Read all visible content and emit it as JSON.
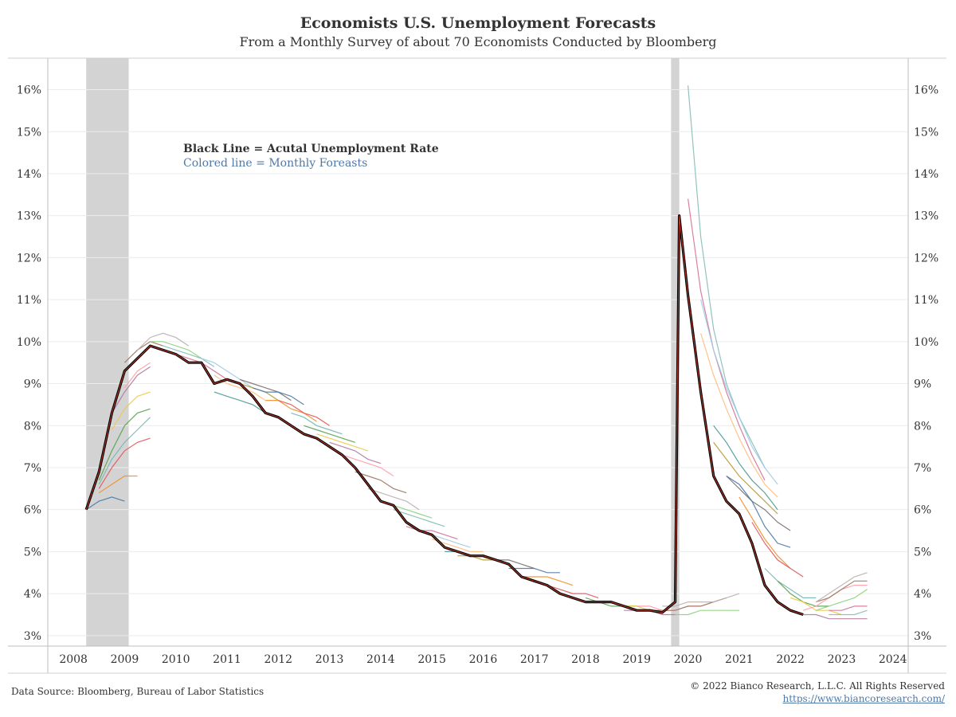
{
  "title": "Economists U.S. Unemployment Forecasts",
  "subtitle": "From a Monthly Survey of about 70 Economists Conducted by Bloomberg",
  "legend": {
    "black_line": "Black Line = Acutal Unemployment Rate",
    "colored_line": "Colored line = Monthly Foreasts"
  },
  "footer": {
    "source": "Data Source: Bloomberg, Bureau of Labor Statistics",
    "copyright": "© 2022 Bianco Research, L.L.C. All Rights Reserved",
    "url": "https://www.biancoresearch.com/"
  },
  "colors": {
    "actual_line": "#000000",
    "actual_inner": "#c0392b",
    "recession_shade": "#d3d3d3",
    "forecast_palette": [
      "#4e79a7",
      "#f28e2b",
      "#e15759",
      "#76b7b2",
      "#59a14f",
      "#edc948",
      "#b07aa1",
      "#ff9da7",
      "#9c755f",
      "#bab0ac",
      "#8cd17d",
      "#86bcb6",
      "#d37295",
      "#a0cbe8",
      "#ffbe7d",
      "#499894",
      "#b6992d",
      "#79706e"
    ]
  },
  "chart_data": {
    "type": "line",
    "title": "Economists U.S. Unemployment Forecasts",
    "xlabel": "",
    "ylabel": "",
    "x_ticks": [
      "2008",
      "2009",
      "2010",
      "2011",
      "2012",
      "2013",
      "2014",
      "2015",
      "2016",
      "2017",
      "2018",
      "2019",
      "2020",
      "2021",
      "2022",
      "2023",
      "2024"
    ],
    "y_ticks": [
      "3%",
      "4%",
      "5%",
      "6%",
      "7%",
      "8%",
      "9%",
      "10%",
      "11%",
      "12%",
      "13%",
      "14%",
      "15%",
      "16%"
    ],
    "xlim": [
      2008.0,
      2024.8
    ],
    "ylim": [
      2.75,
      16.75
    ],
    "grid": true,
    "recessions": [
      [
        2008.75,
        2009.58
      ],
      [
        2020.17,
        2020.33
      ]
    ],
    "actual": {
      "x": [
        2008.75,
        2009.0,
        2009.25,
        2009.5,
        2009.75,
        2010.0,
        2010.25,
        2010.5,
        2010.75,
        2011.0,
        2011.25,
        2011.5,
        2011.75,
        2012.0,
        2012.25,
        2012.5,
        2012.75,
        2013.0,
        2013.25,
        2013.5,
        2013.75,
        2014.0,
        2014.25,
        2014.5,
        2014.75,
        2015.0,
        2015.25,
        2015.5,
        2015.75,
        2016.0,
        2016.25,
        2016.5,
        2016.75,
        2017.0,
        2017.25,
        2017.5,
        2017.75,
        2018.0,
        2018.25,
        2018.5,
        2018.75,
        2019.0,
        2019.25,
        2019.5,
        2019.75,
        2020.0,
        2020.25,
        2020.33,
        2020.5,
        2020.75,
        2021.0,
        2021.25,
        2021.5,
        2021.75,
        2022.0,
        2022.25,
        2022.5,
        2022.75
      ],
      "y": [
        6.0,
        6.9,
        8.3,
        9.3,
        9.6,
        9.9,
        9.8,
        9.7,
        9.5,
        9.5,
        9.0,
        9.1,
        9.0,
        8.7,
        8.3,
        8.2,
        8.0,
        7.8,
        7.7,
        7.5,
        7.3,
        7.0,
        6.6,
        6.2,
        6.1,
        5.7,
        5.5,
        5.4,
        5.1,
        5.0,
        4.9,
        4.9,
        4.8,
        4.7,
        4.4,
        4.3,
        4.2,
        4.0,
        3.9,
        3.8,
        3.8,
        3.8,
        3.7,
        3.6,
        3.6,
        3.55,
        3.8,
        13.0,
        11.1,
        8.8,
        6.8,
        6.2,
        5.9,
        5.2,
        4.2,
        3.8,
        3.6,
        3.5
      ]
    },
    "forecasts": [
      {
        "x": [
          2008.75,
          2009.0,
          2009.25,
          2009.5
        ],
        "y": [
          6.0,
          6.2,
          6.3,
          6.2
        ]
      },
      {
        "x": [
          2009.0,
          2009.25,
          2009.5,
          2009.75
        ],
        "y": [
          6.4,
          6.6,
          6.8,
          6.8
        ]
      },
      {
        "x": [
          2009.0,
          2009.25,
          2009.5,
          2009.75,
          2010.0
        ],
        "y": [
          6.5,
          7.0,
          7.4,
          7.6,
          7.7
        ]
      },
      {
        "x": [
          2009.0,
          2009.25,
          2009.5,
          2009.75,
          2010.0
        ],
        "y": [
          6.6,
          7.2,
          7.6,
          7.9,
          8.2
        ]
      },
      {
        "x": [
          2009.0,
          2009.25,
          2009.5,
          2009.75,
          2010.0
        ],
        "y": [
          6.7,
          7.4,
          8.0,
          8.3,
          8.4
        ]
      },
      {
        "x": [
          2009.25,
          2009.5,
          2009.75,
          2010.0
        ],
        "y": [
          7.9,
          8.4,
          8.7,
          8.8
        ]
      },
      {
        "x": [
          2009.25,
          2009.5,
          2009.75,
          2010.0
        ],
        "y": [
          8.3,
          8.8,
          9.2,
          9.4
        ]
      },
      {
        "x": [
          2009.5,
          2009.75,
          2010.0
        ],
        "y": [
          8.9,
          9.3,
          9.5
        ]
      },
      {
        "x": [
          2009.5,
          2009.75,
          2010.0,
          2010.25
        ],
        "y": [
          9.5,
          9.8,
          10.0,
          9.9
        ]
      },
      {
        "x": [
          2009.75,
          2010.0,
          2010.25,
          2010.5,
          2010.75
        ],
        "y": [
          9.8,
          10.1,
          10.2,
          10.1,
          9.9
        ]
      },
      {
        "x": [
          2010.0,
          2010.25,
          2010.5,
          2010.75,
          2011.0
        ],
        "y": [
          10.0,
          10.0,
          9.9,
          9.8,
          9.6
        ]
      },
      {
        "x": [
          2010.25,
          2010.5,
          2010.75,
          2011.0,
          2011.25
        ],
        "y": [
          9.9,
          9.8,
          9.7,
          9.6,
          9.4
        ]
      },
      {
        "x": [
          2010.5,
          2010.75,
          2011.0,
          2011.25,
          2011.5
        ],
        "y": [
          9.7,
          9.6,
          9.5,
          9.3,
          9.1
        ]
      },
      {
        "x": [
          2011.0,
          2011.25,
          2011.5,
          2011.75,
          2012.0
        ],
        "y": [
          9.6,
          9.5,
          9.3,
          9.1,
          8.9
        ]
      },
      {
        "x": [
          2011.25,
          2011.5,
          2011.75,
          2012.0,
          2012.25
        ],
        "y": [
          9.2,
          9.0,
          8.9,
          8.8,
          8.6
        ]
      },
      {
        "x": [
          2011.25,
          2011.5,
          2011.75,
          2012.0,
          2012.25
        ],
        "y": [
          8.8,
          8.7,
          8.6,
          8.5,
          8.3
        ]
      },
      {
        "x": [
          2011.5,
          2011.75,
          2012.0,
          2012.25,
          2012.5
        ],
        "y": [
          9.1,
          9.0,
          8.9,
          8.8,
          8.6
        ]
      },
      {
        "x": [
          2011.75,
          2012.0,
          2012.25,
          2012.5,
          2012.75
        ],
        "y": [
          9.1,
          9.0,
          8.9,
          8.8,
          8.6
        ]
      },
      {
        "x": [
          2012.0,
          2012.25,
          2012.5,
          2012.75,
          2013.0
        ],
        "y": [
          8.9,
          8.8,
          8.8,
          8.7,
          8.5
        ]
      },
      {
        "x": [
          2012.25,
          2012.5,
          2012.75,
          2013.0,
          2013.25
        ],
        "y": [
          8.6,
          8.6,
          8.4,
          8.3,
          8.1
        ]
      },
      {
        "x": [
          2012.5,
          2012.75,
          2013.0,
          2013.25,
          2013.5
        ],
        "y": [
          8.6,
          8.5,
          8.3,
          8.2,
          8.0
        ]
      },
      {
        "x": [
          2012.75,
          2013.0,
          2013.25,
          2013.5,
          2013.75
        ],
        "y": [
          8.3,
          8.2,
          8.0,
          7.9,
          7.8
        ]
      },
      {
        "x": [
          2013.0,
          2013.25,
          2013.5,
          2013.75,
          2014.0
        ],
        "y": [
          8.0,
          7.9,
          7.8,
          7.7,
          7.6
        ]
      },
      {
        "x": [
          2013.25,
          2013.5,
          2013.75,
          2014.0,
          2014.25
        ],
        "y": [
          7.8,
          7.7,
          7.6,
          7.5,
          7.4
        ]
      },
      {
        "x": [
          2013.5,
          2013.75,
          2014.0,
          2014.25,
          2014.5
        ],
        "y": [
          7.6,
          7.5,
          7.4,
          7.2,
          7.1
        ]
      },
      {
        "x": [
          2013.75,
          2014.0,
          2014.25,
          2014.5,
          2014.75
        ],
        "y": [
          7.3,
          7.2,
          7.1,
          7.0,
          6.8
        ]
      },
      {
        "x": [
          2014.0,
          2014.25,
          2014.5,
          2014.75,
          2015.0
        ],
        "y": [
          6.9,
          6.8,
          6.7,
          6.5,
          6.4
        ]
      },
      {
        "x": [
          2014.25,
          2014.5,
          2014.75,
          2015.0,
          2015.25
        ],
        "y": [
          6.5,
          6.4,
          6.3,
          6.2,
          6.0
        ]
      },
      {
        "x": [
          2014.5,
          2014.75,
          2015.0,
          2015.25,
          2015.5
        ],
        "y": [
          6.2,
          6.1,
          6.0,
          5.9,
          5.8
        ]
      },
      {
        "x": [
          2014.75,
          2015.0,
          2015.25,
          2015.5,
          2015.75
        ],
        "y": [
          6.0,
          5.9,
          5.8,
          5.7,
          5.6
        ]
      },
      {
        "x": [
          2015.0,
          2015.25,
          2015.5,
          2015.75,
          2016.0
        ],
        "y": [
          5.6,
          5.5,
          5.5,
          5.4,
          5.3
        ]
      },
      {
        "x": [
          2015.25,
          2015.5,
          2015.75,
          2016.0,
          2016.25
        ],
        "y": [
          5.5,
          5.4,
          5.3,
          5.2,
          5.1
        ]
      },
      {
        "x": [
          2015.5,
          2015.75,
          2016.0,
          2016.25,
          2016.5
        ],
        "y": [
          5.3,
          5.2,
          5.1,
          5.0,
          5.0
        ]
      },
      {
        "x": [
          2015.75,
          2016.0,
          2016.25,
          2016.5,
          2016.75
        ],
        "y": [
          5.0,
          5.0,
          4.9,
          4.9,
          4.8
        ]
      },
      {
        "x": [
          2016.0,
          2016.25,
          2016.5,
          2016.75,
          2017.0
        ],
        "y": [
          4.9,
          4.9,
          4.8,
          4.8,
          4.7
        ]
      },
      {
        "x": [
          2016.5,
          2016.75,
          2017.0,
          2017.25,
          2017.5
        ],
        "y": [
          4.9,
          4.8,
          4.8,
          4.7,
          4.6
        ]
      },
      {
        "x": [
          2017.0,
          2017.25,
          2017.5,
          2017.75,
          2018.0
        ],
        "y": [
          4.6,
          4.6,
          4.6,
          4.5,
          4.5
        ]
      },
      {
        "x": [
          2017.25,
          2017.5,
          2017.75,
          2018.0,
          2018.25
        ],
        "y": [
          4.4,
          4.4,
          4.4,
          4.3,
          4.2
        ]
      },
      {
        "x": [
          2017.75,
          2018.0,
          2018.25,
          2018.5,
          2018.75
        ],
        "y": [
          4.2,
          4.1,
          4.0,
          4.0,
          3.9
        ]
      },
      {
        "x": [
          2018.0,
          2018.25,
          2018.5,
          2018.75,
          2019.0
        ],
        "y": [
          4.0,
          3.9,
          3.8,
          3.8,
          3.8
        ]
      },
      {
        "x": [
          2018.5,
          2018.75,
          2019.0,
          2019.25,
          2019.5
        ],
        "y": [
          3.9,
          3.8,
          3.7,
          3.7,
          3.7
        ]
      },
      {
        "x": [
          2019.0,
          2019.25,
          2019.5,
          2019.75,
          2020.0
        ],
        "y": [
          3.8,
          3.7,
          3.7,
          3.6,
          3.6
        ]
      },
      {
        "x": [
          2019.25,
          2019.5,
          2019.75,
          2020.0,
          2020.25
        ],
        "y": [
          3.6,
          3.6,
          3.6,
          3.5,
          3.5
        ]
      },
      {
        "x": [
          2019.5,
          2019.75,
          2020.0,
          2020.25,
          2020.5,
          2020.75,
          2021.0
        ],
        "y": [
          3.7,
          3.7,
          3.6,
          3.6,
          3.7,
          3.7,
          3.8
        ]
      },
      {
        "x": [
          2019.75,
          2020.0,
          2020.25,
          2020.5,
          2020.75,
          2021.0,
          2021.25
        ],
        "y": [
          3.6,
          3.6,
          3.6,
          3.7,
          3.7,
          3.8,
          3.9
        ]
      },
      {
        "x": [
          2020.0,
          2020.25,
          2020.5,
          2020.75,
          2021.0,
          2021.25,
          2021.5
        ],
        "y": [
          3.7,
          3.7,
          3.8,
          3.8,
          3.8,
          3.9,
          4.0
        ]
      },
      {
        "x": [
          2020.25,
          2020.5,
          2020.75,
          2021.0,
          2021.25,
          2021.5
        ],
        "y": [
          3.5,
          3.5,
          3.6,
          3.6,
          3.6,
          3.6
        ]
      },
      {
        "x": [
          2020.5,
          2020.75,
          2021.0,
          2021.25,
          2021.5,
          2021.75,
          2022.0
        ],
        "y": [
          16.1,
          12.5,
          10.3,
          9.0,
          8.2,
          7.6,
          7.0
        ]
      },
      {
        "x": [
          2020.5,
          2020.75,
          2021.0,
          2021.25,
          2021.5,
          2021.75,
          2022.0
        ],
        "y": [
          13.4,
          11.2,
          9.8,
          8.8,
          8.0,
          7.3,
          6.7
        ]
      },
      {
        "x": [
          2020.75,
          2021.0,
          2021.25,
          2021.5,
          2021.75,
          2022.0,
          2022.25
        ],
        "y": [
          11.0,
          9.8,
          8.9,
          8.2,
          7.5,
          7.0,
          6.6
        ]
      },
      {
        "x": [
          2020.75,
          2021.0,
          2021.25,
          2021.5,
          2021.75,
          2022.0,
          2022.25
        ],
        "y": [
          10.2,
          9.2,
          8.4,
          7.7,
          7.1,
          6.6,
          6.3
        ]
      },
      {
        "x": [
          2021.0,
          2021.25,
          2021.5,
          2021.75,
          2022.0,
          2022.25
        ],
        "y": [
          8.0,
          7.6,
          7.1,
          6.7,
          6.4,
          6.0
        ]
      },
      {
        "x": [
          2021.0,
          2021.25,
          2021.5,
          2021.75,
          2022.0,
          2022.25
        ],
        "y": [
          7.6,
          7.2,
          6.8,
          6.5,
          6.2,
          5.9
        ]
      },
      {
        "x": [
          2021.25,
          2021.5,
          2021.75,
          2022.0,
          2022.25,
          2022.5
        ],
        "y": [
          6.8,
          6.5,
          6.2,
          6.0,
          5.7,
          5.5
        ]
      },
      {
        "x": [
          2021.25,
          2021.5,
          2021.75,
          2022.0,
          2022.25,
          2022.5
        ],
        "y": [
          6.8,
          6.6,
          6.2,
          5.6,
          5.2,
          5.1
        ]
      },
      {
        "x": [
          2021.5,
          2021.75,
          2022.0,
          2022.25,
          2022.5
        ],
        "y": [
          6.3,
          5.8,
          5.3,
          4.9,
          4.6
        ]
      },
      {
        "x": [
          2021.75,
          2022.0,
          2022.25,
          2022.5,
          2022.75
        ],
        "y": [
          5.7,
          5.2,
          4.8,
          4.6,
          4.4
        ]
      },
      {
        "x": [
          2022.0,
          2022.25,
          2022.5,
          2022.75,
          2023.0
        ],
        "y": [
          4.6,
          4.3,
          4.1,
          3.9,
          3.9
        ]
      },
      {
        "x": [
          2022.25,
          2022.5,
          2022.75,
          2023.0,
          2023.25
        ],
        "y": [
          4.3,
          4.0,
          3.8,
          3.7,
          3.7
        ]
      },
      {
        "x": [
          2022.5,
          2022.75,
          2023.0,
          2023.25,
          2023.5
        ],
        "y": [
          3.9,
          3.8,
          3.6,
          3.6,
          3.5
        ]
      },
      {
        "x": [
          2022.75,
          2023.0,
          2023.25,
          2023.5,
          2023.75,
          2024.0
        ],
        "y": [
          3.5,
          3.5,
          3.4,
          3.4,
          3.4,
          3.4
        ]
      },
      {
        "x": [
          2022.75,
          2023.0,
          2023.25,
          2023.5,
          2023.75,
          2024.0
        ],
        "y": [
          3.6,
          3.7,
          3.9,
          4.1,
          4.2,
          4.2
        ]
      },
      {
        "x": [
          2023.0,
          2023.25,
          2023.5,
          2023.75,
          2024.0
        ],
        "y": [
          3.8,
          3.9,
          4.1,
          4.3,
          4.3
        ]
      },
      {
        "x": [
          2023.0,
          2023.25,
          2023.5,
          2023.75,
          2024.0
        ],
        "y": [
          3.8,
          4.0,
          4.2,
          4.4,
          4.5
        ]
      },
      {
        "x": [
          2023.0,
          2023.25,
          2023.5,
          2023.75,
          2024.0
        ],
        "y": [
          3.6,
          3.7,
          3.8,
          3.9,
          4.1
        ]
      },
      {
        "x": [
          2023.25,
          2023.5,
          2023.75,
          2024.0
        ],
        "y": [
          3.5,
          3.5,
          3.5,
          3.6
        ]
      },
      {
        "x": [
          2023.25,
          2023.5,
          2023.75,
          2024.0
        ],
        "y": [
          3.6,
          3.6,
          3.7,
          3.7
        ]
      }
    ]
  }
}
